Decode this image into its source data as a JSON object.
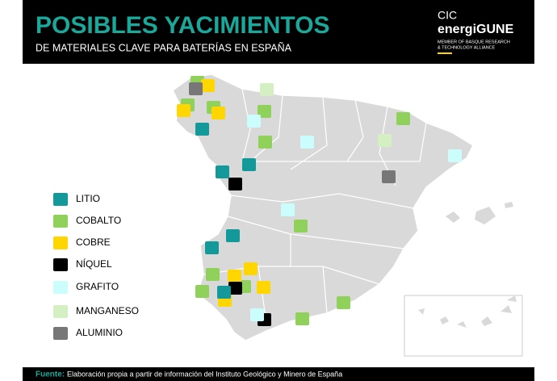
{
  "header": {
    "title": "POSIBLES YACIMIENTOS",
    "subtitle": "DE MATERIALES CLAVE PARA BATERÍAS EN ESPAÑA"
  },
  "logo": {
    "line1": "CIC",
    "line2": "energiGUNE",
    "line3": "MEMBER OF BASQUE RESEARCH",
    "line4": "& TECHNOLOGY ALLIANCE"
  },
  "legend": [
    {
      "label": "LITIO",
      "color": "#14999b"
    },
    {
      "label": "COBALTO",
      "color": "#8fd15a"
    },
    {
      "label": "COBRE",
      "color": "#ffd600"
    },
    {
      "label": "NÍQUEL",
      "color": "#000000"
    },
    {
      "label": "GRAFITO",
      "color": "#ccfdfd"
    },
    {
      "label": "MANGANESO",
      "color": "#d4f0c2"
    },
    {
      "label": "ALUMINIO",
      "color": "#777777"
    }
  ],
  "footer": {
    "label": "Fuente:",
    "text": "Elaboración propia a partir de información del Instituto Geológico y Minero de España"
  }
}
